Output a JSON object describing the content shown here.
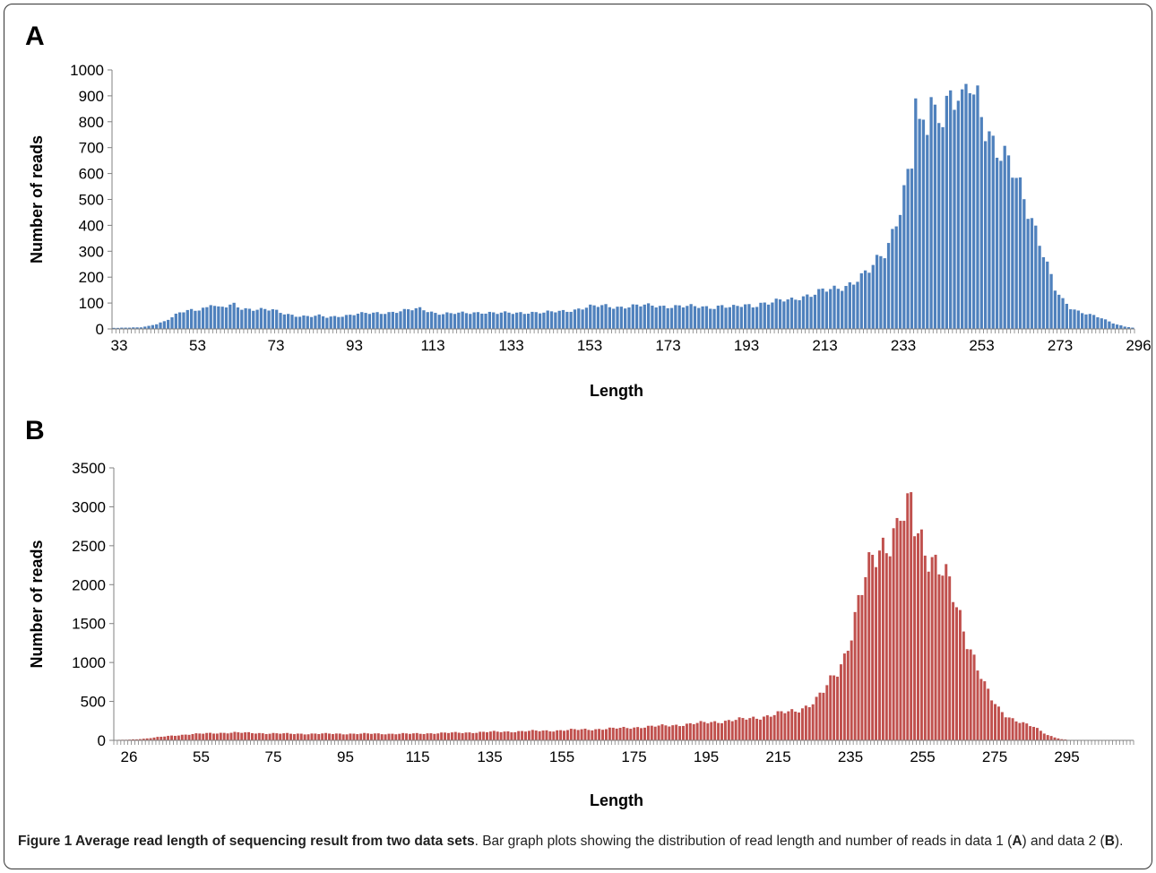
{
  "panels": {
    "a": {
      "letter": "A"
    },
    "b": {
      "letter": "B"
    }
  },
  "caption": {
    "title": "Figure 1 Average read length of sequencing result from two data sets",
    "text_1": ". Bar graph plots showing the distribution of read length and number of reads in data 1 (",
    "ref_a": "A",
    "text_2": ") and data 2 (",
    "ref_b": "B",
    "text_3": ")."
  },
  "chart_data": [
    {
      "type": "bar",
      "panel": "A",
      "xlabel": "Length",
      "ylabel": "Number of reads",
      "x_start": 33,
      "x_end": 296,
      "x_tick_labels": [
        "33",
        "53",
        "73",
        "93",
        "113",
        "133",
        "153",
        "173",
        "193",
        "213",
        "233",
        "253",
        "273",
        "296"
      ],
      "ylim": [
        0,
        1000
      ],
      "y_ticks": [
        0,
        100,
        200,
        300,
        400,
        500,
        600,
        700,
        800,
        900,
        1000
      ],
      "color": "#4f81bd",
      "anchors": [
        [
          33,
          4
        ],
        [
          36,
          5
        ],
        [
          40,
          6
        ],
        [
          42,
          12
        ],
        [
          44,
          20
        ],
        [
          46,
          30
        ],
        [
          48,
          45
        ],
        [
          50,
          62
        ],
        [
          53,
          72
        ],
        [
          55,
          78
        ],
        [
          57,
          85
        ],
        [
          58,
          102
        ],
        [
          60,
          80
        ],
        [
          62,
          85
        ],
        [
          64,
          92
        ],
        [
          66,
          80
        ],
        [
          70,
          78
        ],
        [
          74,
          72
        ],
        [
          76,
          62
        ],
        [
          80,
          52
        ],
        [
          84,
          48
        ],
        [
          86,
          50
        ],
        [
          88,
          45
        ],
        [
          92,
          52
        ],
        [
          96,
          58
        ],
        [
          100,
          60
        ],
        [
          104,
          65
        ],
        [
          108,
          70
        ],
        [
          112,
          78
        ],
        [
          114,
          72
        ],
        [
          116,
          62
        ],
        [
          120,
          58
        ],
        [
          124,
          62
        ],
        [
          128,
          65
        ],
        [
          132,
          60
        ],
        [
          136,
          62
        ],
        [
          140,
          65
        ],
        [
          144,
          62
        ],
        [
          148,
          68
        ],
        [
          152,
          75
        ],
        [
          156,
          85
        ],
        [
          160,
          90
        ],
        [
          164,
          85
        ],
        [
          168,
          88
        ],
        [
          172,
          92
        ],
        [
          176,
          88
        ],
        [
          180,
          85
        ],
        [
          184,
          88
        ],
        [
          188,
          85
        ],
        [
          190,
          88
        ],
        [
          192,
          82
        ],
        [
          194,
          85
        ],
        [
          196,
          95
        ],
        [
          198,
          90
        ],
        [
          200,
          100
        ],
        [
          202,
          98
        ],
        [
          204,
          105
        ],
        [
          206,
          110
        ],
        [
          208,
          115
        ],
        [
          210,
          125
        ],
        [
          212,
          130
        ],
        [
          214,
          135
        ],
        [
          216,
          145
        ],
        [
          218,
          150
        ],
        [
          220,
          160
        ],
        [
          222,
          170
        ],
        [
          224,
          185
        ],
        [
          226,
          200
        ],
        [
          228,
          220
        ],
        [
          230,
          260
        ],
        [
          232,
          300
        ],
        [
          234,
          380
        ],
        [
          236,
          480
        ],
        [
          238,
          580
        ],
        [
          240,
          680
        ],
        [
          242,
          780
        ],
        [
          244,
          830
        ],
        [
          246,
          860
        ],
        [
          248,
          880
        ],
        [
          250,
          870
        ],
        [
          252,
          880
        ],
        [
          254,
          900
        ],
        [
          256,
          920
        ],
        [
          258,
          820
        ],
        [
          260,
          720
        ],
        [
          262,
          660
        ],
        [
          264,
          620
        ],
        [
          266,
          580
        ],
        [
          268,
          520
        ],
        [
          270,
          440
        ],
        [
          272,
          340
        ],
        [
          274,
          240
        ],
        [
          276,
          150
        ],
        [
          278,
          110
        ],
        [
          280,
          85
        ],
        [
          282,
          70
        ],
        [
          284,
          60
        ],
        [
          286,
          50
        ],
        [
          288,
          40
        ],
        [
          290,
          28
        ],
        [
          292,
          18
        ],
        [
          294,
          10
        ],
        [
          296,
          5
        ]
      ],
      "spikes": [
        [
          240,
          890
        ],
        [
          244,
          895
        ],
        [
          248,
          900
        ],
        [
          252,
          925
        ],
        [
          256,
          940
        ],
        [
          254,
          910
        ]
      ]
    },
    {
      "type": "bar",
      "panel": "B",
      "xlabel": "Length",
      "ylabel": "Number of reads",
      "x_start": 26,
      "x_end": 316,
      "x_tick_labels": [
        "26",
        "55",
        "75",
        "95",
        "115",
        "135",
        "155",
        "175",
        "195",
        "215",
        "235",
        "255",
        "275",
        "295"
      ],
      "ylim": [
        0,
        3500
      ],
      "y_ticks": [
        0,
        500,
        1000,
        1500,
        2000,
        2500,
        3000,
        3500
      ],
      "color": "#c0504d",
      "anchors": [
        [
          26,
          5
        ],
        [
          30,
          10
        ],
        [
          34,
          20
        ],
        [
          38,
          40
        ],
        [
          42,
          60
        ],
        [
          46,
          75
        ],
        [
          50,
          85
        ],
        [
          55,
          95
        ],
        [
          60,
          100
        ],
        [
          65,
          95
        ],
        [
          70,
          90
        ],
        [
          75,
          85
        ],
        [
          80,
          85
        ],
        [
          90,
          85
        ],
        [
          100,
          85
        ],
        [
          110,
          85
        ],
        [
          120,
          95
        ],
        [
          130,
          105
        ],
        [
          140,
          115
        ],
        [
          150,
          125
        ],
        [
          160,
          140
        ],
        [
          170,
          155
        ],
        [
          175,
          170
        ],
        [
          180,
          180
        ],
        [
          185,
          195
        ],
        [
          190,
          210
        ],
        [
          195,
          230
        ],
        [
          200,
          250
        ],
        [
          205,
          270
        ],
        [
          210,
          300
        ],
        [
          215,
          340
        ],
        [
          220,
          380
        ],
        [
          222,
          420
        ],
        [
          224,
          460
        ],
        [
          226,
          520
        ],
        [
          228,
          620
        ],
        [
          230,
          760
        ],
        [
          232,
          900
        ],
        [
          234,
          1100
        ],
        [
          236,
          1400
        ],
        [
          238,
          1750
        ],
        [
          240,
          2050
        ],
        [
          242,
          2300
        ],
        [
          244,
          2480
        ],
        [
          246,
          2600
        ],
        [
          248,
          2680
        ],
        [
          250,
          2750
        ],
        [
          252,
          2850
        ],
        [
          253,
          3000
        ],
        [
          254,
          2750
        ],
        [
          256,
          2600
        ],
        [
          258,
          2450
        ],
        [
          260,
          2300
        ],
        [
          262,
          2150
        ],
        [
          264,
          1950
        ],
        [
          266,
          1700
        ],
        [
          268,
          1450
        ],
        [
          270,
          1200
        ],
        [
          272,
          950
        ],
        [
          274,
          700
        ],
        [
          276,
          520
        ],
        [
          278,
          400
        ],
        [
          280,
          330
        ],
        [
          282,
          280
        ],
        [
          284,
          240
        ],
        [
          286,
          200
        ],
        [
          288,
          170
        ],
        [
          290,
          120
        ],
        [
          292,
          70
        ],
        [
          294,
          40
        ],
        [
          296,
          15
        ],
        [
          298,
          5
        ],
        [
          316,
          0
        ]
      ],
      "spikes": [
        [
          250,
          2820
        ]
      ]
    }
  ]
}
